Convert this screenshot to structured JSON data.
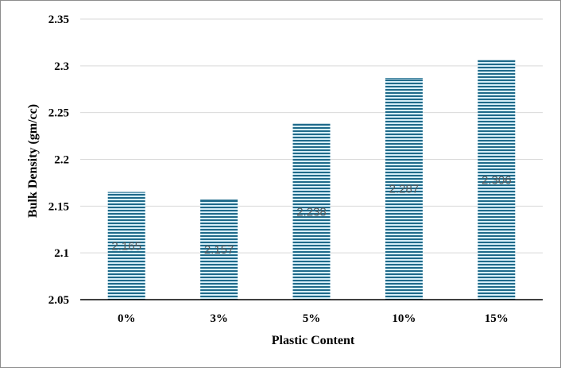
{
  "chart_data": {
    "type": "bar",
    "categories": [
      "0%",
      "3%",
      "5%",
      "10%",
      "15%"
    ],
    "values": [
      2.165,
      2.157,
      2.238,
      2.287,
      2.306
    ],
    "data_labels": [
      "2.165",
      "2.157",
      "2.238",
      "2.287",
      "2.306"
    ],
    "xlabel": "Plastic Content",
    "ylabel": "Bulk Density (gm/cc)",
    "ylim": [
      2.05,
      2.35
    ],
    "yticks": [
      2.05,
      2.1,
      2.15,
      2.2,
      2.25,
      2.3,
      2.35
    ],
    "ytick_labels": [
      "2.05",
      "2.1",
      "2.15",
      "2.2",
      "2.25",
      "2.3",
      "2.35"
    ],
    "grid": true,
    "legend": "none",
    "colors": {
      "bar_stripe_dark": "#1f6a8a",
      "bar_stripe_light": "#d6eef8",
      "grid": "#d9d9d9",
      "axis": "#000000"
    }
  }
}
